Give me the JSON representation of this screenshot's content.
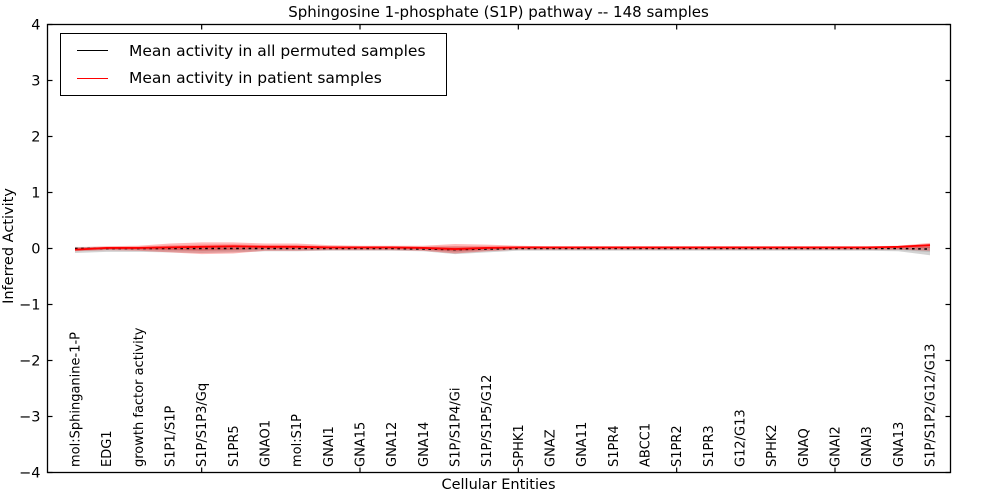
{
  "figure": {
    "title": "Sphingosine 1-phosphate (S1P) pathway -- 148 samples",
    "xlabel": "Cellular Entities",
    "ylabel": "Inferred Activity"
  },
  "legend": {
    "entries": [
      {
        "label": "Mean activity in all permuted samples",
        "color": "#000000"
      },
      {
        "label": "Mean activity in patient samples",
        "color": "#ff0000"
      }
    ]
  },
  "chart_data": {
    "type": "line",
    "title": "Sphingosine 1-phosphate (S1P) pathway -- 148 samples",
    "xlabel": "Cellular Entities",
    "ylabel": "Inferred Activity",
    "ylim": [
      -4,
      4
    ],
    "yticks": [
      -4,
      -3,
      -2,
      -1,
      0,
      1,
      2,
      3,
      4
    ],
    "grid": false,
    "legend_position": "upper left",
    "categories": [
      "mol:Sphinganine-1-P",
      "EDG1",
      "growth factor activity",
      "S1P1/S1P",
      "S1P/S1P3/Gq",
      "S1PR5",
      "GNAO1",
      "mol:S1P",
      "GNAI1",
      "GNA15",
      "GNA12",
      "GNA14",
      "S1P/S1P4/Gi",
      "S1P/S1P5/G12",
      "SPHK1",
      "GNAZ",
      "GNA11",
      "S1PR4",
      "ABCC1",
      "S1PR2",
      "S1PR3",
      "G12/G13",
      "SPHK2",
      "GNAQ",
      "GNAI2",
      "GNAI3",
      "GNA13",
      "S1P/S1P2/G12/G13"
    ],
    "xtick_marks_at_indices": [
      4,
      9,
      14,
      19,
      24
    ],
    "series": [
      {
        "name": "Mean activity in all permuted samples",
        "color": "#000000",
        "style": "dashed",
        "values": [
          0.0,
          0.0,
          0.0,
          0.0,
          0.0,
          0.0,
          0.0,
          0.0,
          0.0,
          0.0,
          0.0,
          -0.01,
          -0.02,
          -0.01,
          0.0,
          0.0,
          0.0,
          0.0,
          0.0,
          0.0,
          0.0,
          0.0,
          0.0,
          0.0,
          0.0,
          0.0,
          0.0,
          -0.01
        ]
      },
      {
        "name": "Mean activity in patient samples",
        "color": "#ff0000",
        "style": "solid",
        "values": [
          -0.02,
          0.01,
          0.01,
          0.02,
          0.03,
          0.04,
          0.03,
          0.03,
          0.02,
          0.02,
          0.02,
          0.01,
          -0.01,
          0.01,
          0.02,
          0.02,
          0.02,
          0.02,
          0.02,
          0.02,
          0.02,
          0.02,
          0.02,
          0.02,
          0.02,
          0.02,
          0.03,
          0.06
        ]
      }
    ],
    "bands": [
      {
        "name": "permuted-samples-std-band",
        "color": "#909090",
        "opacity": 0.4,
        "upper": [
          0.03,
          0.03,
          0.03,
          0.04,
          0.04,
          0.04,
          0.03,
          0.03,
          0.03,
          0.03,
          0.03,
          0.03,
          0.04,
          0.03,
          0.02,
          0.02,
          0.02,
          0.02,
          0.02,
          0.02,
          0.02,
          0.02,
          0.02,
          0.02,
          0.02,
          0.02,
          0.03,
          0.07
        ],
        "lower": [
          -0.08,
          -0.06,
          -0.06,
          -0.07,
          -0.08,
          -0.07,
          -0.05,
          -0.05,
          -0.04,
          -0.04,
          -0.04,
          -0.05,
          -0.1,
          -0.07,
          -0.04,
          -0.04,
          -0.04,
          -0.04,
          -0.04,
          -0.04,
          -0.04,
          -0.04,
          -0.04,
          -0.04,
          -0.04,
          -0.04,
          -0.05,
          -0.12
        ],
        "legend": null
      },
      {
        "name": "patient-samples-std-band",
        "color": "#ff0000",
        "opacity": 0.28,
        "upper": [
          0.02,
          0.04,
          0.05,
          0.09,
          0.11,
          0.11,
          0.09,
          0.09,
          0.06,
          0.05,
          0.05,
          0.05,
          0.08,
          0.07,
          0.05,
          0.04,
          0.04,
          0.04,
          0.04,
          0.04,
          0.04,
          0.04,
          0.04,
          0.04,
          0.04,
          0.04,
          0.05,
          0.1
        ],
        "lower": [
          -0.05,
          -0.03,
          -0.04,
          -0.07,
          -0.1,
          -0.09,
          -0.04,
          -0.04,
          -0.03,
          -0.03,
          -0.03,
          -0.04,
          -0.09,
          -0.05,
          -0.02,
          -0.02,
          -0.02,
          -0.02,
          -0.02,
          -0.02,
          -0.02,
          -0.02,
          -0.02,
          -0.02,
          -0.02,
          -0.02,
          -0.02,
          -0.04
        ],
        "legend": null
      }
    ]
  }
}
